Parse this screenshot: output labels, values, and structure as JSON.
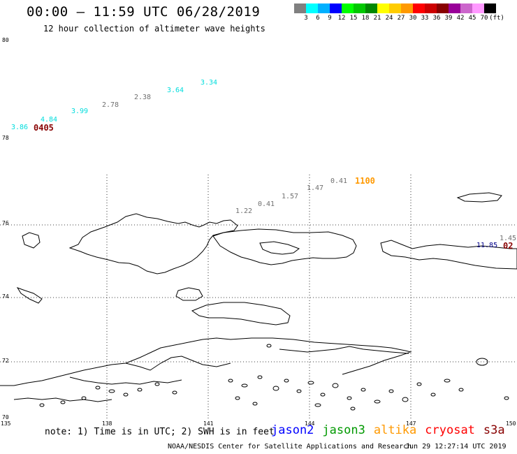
{
  "header": {
    "title": "00:00 – 11:59 UTC 06/28/2019",
    "subtitle": "12 hour collection of altimeter wave heights"
  },
  "legend": {
    "colors": [
      "#808080",
      "#00ffff",
      "#00b0ff",
      "#0000ff",
      "#00ff00",
      "#00c800",
      "#008800",
      "#ffff00",
      "#ffcc00",
      "#ff9900",
      "#ff0000",
      "#cc0000",
      "#880000",
      "#990099",
      "#cc66cc",
      "#ff99ff",
      "#000000"
    ],
    "labels": [
      "3",
      "6",
      "9",
      "12",
      "15",
      "18",
      "21",
      "24",
      "27",
      "30",
      "33",
      "36",
      "39",
      "42",
      "45",
      "70",
      "(ft)"
    ]
  },
  "axes": {
    "lat_labels": [
      "80",
      "78",
      "76",
      "74",
      "72",
      "70"
    ],
    "lon_labels": [
      "135",
      "138",
      "141",
      "144",
      "147",
      "150"
    ]
  },
  "wave_labels": [
    {
      "text": "3.86",
      "color": "#00dddd"
    },
    {
      "text": "4.84",
      "color": "#00dddd"
    },
    {
      "text": "3.99",
      "color": "#00dddd"
    },
    {
      "text": "2.78",
      "color": "#707070"
    },
    {
      "text": "2.38",
      "color": "#707070"
    },
    {
      "text": "3.64",
      "color": "#00dddd"
    },
    {
      "text": "3.34",
      "color": "#00dddd"
    },
    {
      "text": "1.22",
      "color": "#707070"
    },
    {
      "text": "0.41",
      "color": "#707070"
    },
    {
      "text": "1.57",
      "color": "#707070"
    },
    {
      "text": "1.47",
      "color": "#707070"
    },
    {
      "text": "0.41",
      "color": "#707070"
    },
    {
      "text": "1.45",
      "color": "#707070"
    },
    {
      "text": "11.85",
      "color": "#00008b"
    }
  ],
  "time_labels": [
    {
      "text": "0405",
      "color": "#880000"
    },
    {
      "text": "1100",
      "color": "#ff9900"
    },
    {
      "text": "02",
      "color": "#880000"
    }
  ],
  "footer": {
    "note": "note: 1) Time is in UTC; 2) SWH is in feet",
    "satellites": [
      {
        "name": "jason2",
        "color": "#0000ff"
      },
      {
        "name": "jason3",
        "color": "#009900"
      },
      {
        "name": "altika",
        "color": "#ff9900"
      },
      {
        "name": "cryosat",
        "color": "#ff0000"
      },
      {
        "name": "s3a",
        "color": "#880000"
      }
    ],
    "credit": "NOAA/NESDIS Center for Satellite Applications and Research",
    "timestamp": "Jun 29 12:27:14 UTC 2019"
  }
}
